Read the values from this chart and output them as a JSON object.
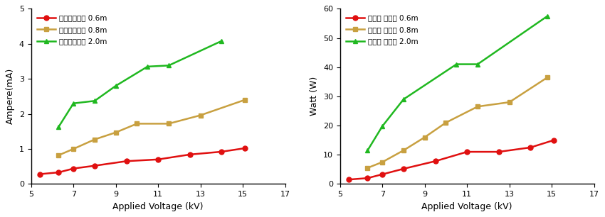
{
  "left": {
    "xlabel": "Applied Voltage (kV)",
    "ylabel": "Ampere(mA)",
    "xlim": [
      5,
      17
    ],
    "ylim": [
      0,
      5
    ],
    "xticks": [
      5,
      7,
      9,
      11,
      13,
      15,
      17
    ],
    "yticks": [
      0,
      1,
      2,
      3,
      4,
      5
    ],
    "series": [
      {
        "label": "톅스텐와이어 0.6m",
        "color": "#e01010",
        "marker": "o",
        "x": [
          5.4,
          6.3,
          7.0,
          8.0,
          9.5,
          11.0,
          12.5,
          14.0,
          15.1
        ],
        "y": [
          0.28,
          0.33,
          0.44,
          0.52,
          0.65,
          0.7,
          0.84,
          0.92,
          1.02
        ]
      },
      {
        "label": "톅스텐와이어 0.8m",
        "color": "#c8a040",
        "marker": "s",
        "x": [
          6.3,
          7.0,
          8.0,
          9.0,
          10.0,
          11.5,
          13.0,
          15.1
        ],
        "y": [
          0.82,
          1.0,
          1.27,
          1.47,
          1.72,
          1.72,
          1.96,
          2.4
        ]
      },
      {
        "label": "톅스텐와이어 2.0m",
        "color": "#20b820",
        "marker": "^",
        "x": [
          6.3,
          7.0,
          8.0,
          9.0,
          10.5,
          11.5,
          14.0
        ],
        "y": [
          1.63,
          2.3,
          2.37,
          2.8,
          3.35,
          3.38,
          4.08
        ]
      }
    ]
  },
  "right": {
    "xlabel": "Applied Voltage (kV)",
    "ylabel": "Watt (W)",
    "xlim": [
      5,
      17
    ],
    "ylim": [
      0,
      60
    ],
    "xticks": [
      5,
      7,
      9,
      11,
      13,
      15,
      17
    ],
    "yticks": [
      0,
      10,
      20,
      30,
      40,
      50,
      60
    ],
    "series": [
      {
        "label": "톅스텐 와이어 0.6m",
        "color": "#e01010",
        "marker": "o",
        "x": [
          5.4,
          6.3,
          7.0,
          8.0,
          9.5,
          11.0,
          12.5,
          14.0,
          15.1
        ],
        "y": [
          1.5,
          2.0,
          3.3,
          5.2,
          7.8,
          11.0,
          11.0,
          12.5,
          15.0
        ]
      },
      {
        "label": "톅스텐 와이어 0.8m",
        "color": "#c8a040",
        "marker": "s",
        "x": [
          6.3,
          7.0,
          8.0,
          9.0,
          10.0,
          11.5,
          13.0,
          14.8
        ],
        "y": [
          5.5,
          7.5,
          11.5,
          16.0,
          21.0,
          26.5,
          28.0,
          36.5
        ]
      },
      {
        "label": "톅스텐 와이어 2.0m",
        "color": "#20b820",
        "marker": "^",
        "x": [
          6.3,
          7.0,
          8.0,
          10.5,
          11.5,
          14.8
        ],
        "y": [
          11.5,
          19.8,
          29.0,
          41.0,
          41.0,
          57.5
        ]
      }
    ]
  }
}
